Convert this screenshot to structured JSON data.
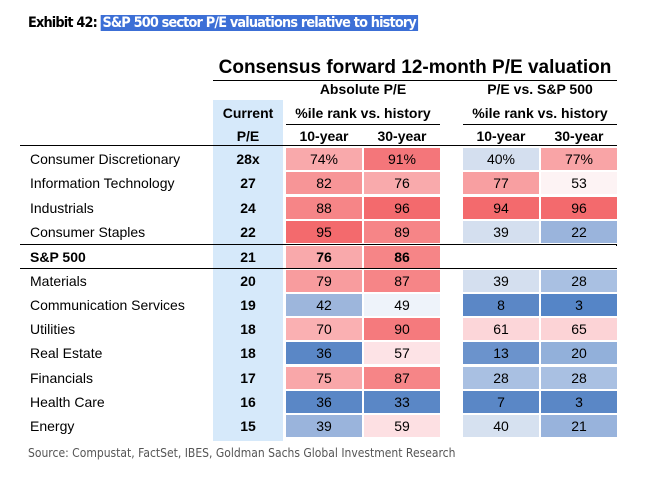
{
  "exhibit": {
    "label": "Exhibit 42:",
    "title": "S&P 500 sector P/E valuations relative to history"
  },
  "chart_data": {
    "type": "table",
    "title": "Consensus forward 12-month P/E valuation",
    "group_headers": [
      "Absolute P/E",
      "P/E vs. S&P 500"
    ],
    "sub_header": "%ile rank vs. history",
    "current_header": [
      "Current",
      "P/E"
    ],
    "columns": [
      "10-year",
      "30-year",
      "10-year",
      "30-year"
    ],
    "rows": [
      {
        "sector": "Consumer Discretionary",
        "pe": "28x",
        "values": [
          "74%",
          "91%",
          "40%",
          "77%"
        ],
        "colors": [
          "#f9a9ab",
          "#f4767a",
          "#d4dfef",
          "#f9a4a6"
        ]
      },
      {
        "sector": "Information Technology",
        "pe": "27",
        "values": [
          "82",
          "76",
          "77",
          "53"
        ],
        "colors": [
          "#f79597",
          "#f9aaac",
          "#f89fa1",
          "#fdf3f4"
        ]
      },
      {
        "sector": "Industrials",
        "pe": "24",
        "values": [
          "88",
          "96",
          "94",
          "96"
        ],
        "colors": [
          "#f68587",
          "#f36a6d",
          "#f36a6d",
          "#f36a6d"
        ]
      },
      {
        "sector": "Consumer Staples",
        "pe": "22",
        "values": [
          "95",
          "89",
          "39",
          "22"
        ],
        "colors": [
          "#f36a6d",
          "#f68587",
          "#d4dfef",
          "#9ab4dc"
        ]
      },
      {
        "sector": "S&P 500",
        "pe": "21",
        "values": [
          "76",
          "86",
          "",
          ""
        ],
        "colors": [
          "#f9a9ab",
          "#f68587",
          "#ffffff",
          "#ffffff"
        ],
        "highlight": true
      },
      {
        "sector": "Materials",
        "pe": "20",
        "values": [
          "79",
          "87",
          "39",
          "28"
        ],
        "colors": [
          "#f89c9e",
          "#f68587",
          "#d4dfef",
          "#a9c0e2"
        ]
      },
      {
        "sector": "Communication Services",
        "pe": "19",
        "values": [
          "42",
          "49",
          "8",
          "3"
        ],
        "colors": [
          "#9db6dc",
          "#eef3fa",
          "#5b87c6",
          "#5585c7"
        ]
      },
      {
        "sector": "Utilities",
        "pe": "18",
        "values": [
          "70",
          "90",
          "61",
          "65"
        ],
        "colors": [
          "#fab0b2",
          "#f57a7d",
          "#fcd6d9",
          "#fcd3d6"
        ]
      },
      {
        "sector": "Real Estate",
        "pe": "18",
        "values": [
          "36",
          "57",
          "13",
          "20"
        ],
        "colors": [
          "#5a87c6",
          "#fde3e6",
          "#6b93cc",
          "#92b0da"
        ]
      },
      {
        "sector": "Financials",
        "pe": "17",
        "values": [
          "75",
          "87",
          "28",
          "28"
        ],
        "colors": [
          "#f9a7a9",
          "#f68587",
          "#a9c0e2",
          "#a9c0e2"
        ]
      },
      {
        "sector": "Health Care",
        "pe": "16",
        "values": [
          "36",
          "33",
          "7",
          "3"
        ],
        "colors": [
          "#5a87c6",
          "#5a87c6",
          "#5a87c6",
          "#5a87c6"
        ]
      },
      {
        "sector": "Energy",
        "pe": "15",
        "values": [
          "39",
          "59",
          "40",
          "21"
        ],
        "colors": [
          "#9ab4dc",
          "#fde0e3",
          "#d6e1f0",
          "#98b3dc"
        ]
      }
    ]
  },
  "source": "Source: Compustat, FactSet, IBES, Goldman Sachs Global Investment Research"
}
